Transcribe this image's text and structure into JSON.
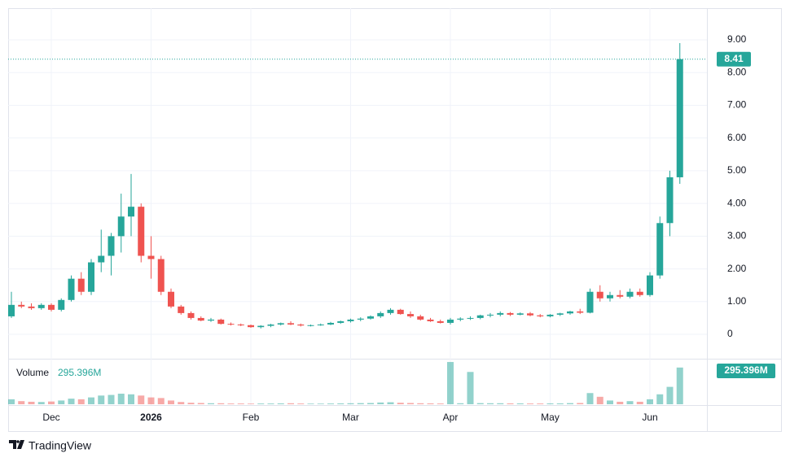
{
  "chart_data": {
    "type": "candlestick",
    "categories": [
      null,
      null,
      null,
      null,
      "Dec",
      null,
      null,
      null,
      null,
      null,
      null,
      null,
      null,
      null,
      "2026",
      null,
      null,
      null,
      null,
      null,
      null,
      null,
      null,
      null,
      "Feb",
      null,
      null,
      null,
      null,
      null,
      null,
      null,
      null,
      null,
      "Mar",
      null,
      null,
      null,
      null,
      null,
      null,
      null,
      null,
      null,
      "Apr",
      null,
      null,
      null,
      null,
      null,
      null,
      null,
      null,
      null,
      "May",
      null,
      null,
      null,
      null,
      null,
      null,
      null,
      null,
      null,
      "Jun",
      null,
      null,
      null
    ],
    "open": [
      0.55,
      0.9,
      0.85,
      0.8,
      0.9,
      0.75,
      1.05,
      1.7,
      1.3,
      2.2,
      2.4,
      3.0,
      3.6,
      3.9,
      2.4,
      2.3,
      1.3,
      0.85,
      0.65,
      0.5,
      0.42,
      0.45,
      0.32,
      0.3,
      0.28,
      0.22,
      0.26,
      0.3,
      0.34,
      0.3,
      0.27,
      0.28,
      0.3,
      0.35,
      0.4,
      0.45,
      0.48,
      0.55,
      0.65,
      0.75,
      0.62,
      0.55,
      0.45,
      0.4,
      0.35,
      0.45,
      0.48,
      0.5,
      0.58,
      0.6,
      0.65,
      0.6,
      0.64,
      0.58,
      0.55,
      0.6,
      0.64,
      0.7,
      0.66,
      1.3,
      1.1,
      1.2,
      1.15,
      1.3,
      1.2,
      1.8,
      3.4,
      4.8
    ],
    "high": [
      1.3,
      1.0,
      0.95,
      0.95,
      0.95,
      1.1,
      1.8,
      1.9,
      2.3,
      3.2,
      3.1,
      4.3,
      4.9,
      4.0,
      3.0,
      2.4,
      1.4,
      0.9,
      0.7,
      0.55,
      0.5,
      0.48,
      0.36,
      0.33,
      0.3,
      0.28,
      0.32,
      0.36,
      0.4,
      0.33,
      0.3,
      0.33,
      0.38,
      0.42,
      0.48,
      0.52,
      0.58,
      0.7,
      0.8,
      0.78,
      0.7,
      0.6,
      0.5,
      0.45,
      0.5,
      0.52,
      0.55,
      0.6,
      0.65,
      0.7,
      0.68,
      0.67,
      0.68,
      0.62,
      0.62,
      0.66,
      0.72,
      0.78,
      1.4,
      1.5,
      1.3,
      1.35,
      1.4,
      1.4,
      1.9,
      3.6,
      5.0,
      8.9
    ],
    "low": [
      0.5,
      0.8,
      0.75,
      0.75,
      0.7,
      0.7,
      1.0,
      1.2,
      1.2,
      1.9,
      1.8,
      2.5,
      3.0,
      2.2,
      1.7,
      1.2,
      0.8,
      0.6,
      0.45,
      0.4,
      0.38,
      0.3,
      0.27,
      0.25,
      0.2,
      0.18,
      0.22,
      0.27,
      0.28,
      0.24,
      0.24,
      0.26,
      0.28,
      0.32,
      0.36,
      0.4,
      0.45,
      0.5,
      0.6,
      0.6,
      0.5,
      0.42,
      0.38,
      0.33,
      0.3,
      0.4,
      0.44,
      0.46,
      0.52,
      0.55,
      0.56,
      0.58,
      0.55,
      0.52,
      0.52,
      0.56,
      0.6,
      0.62,
      0.64,
      1.0,
      1.0,
      1.1,
      1.1,
      1.15,
      1.15,
      1.7,
      3.0,
      4.6
    ],
    "close": [
      0.9,
      0.85,
      0.8,
      0.9,
      0.75,
      1.05,
      1.7,
      1.3,
      2.2,
      2.4,
      3.0,
      3.6,
      3.9,
      2.4,
      2.3,
      1.3,
      0.85,
      0.65,
      0.5,
      0.42,
      0.45,
      0.32,
      0.3,
      0.28,
      0.22,
      0.26,
      0.3,
      0.34,
      0.3,
      0.27,
      0.28,
      0.3,
      0.35,
      0.4,
      0.45,
      0.48,
      0.55,
      0.65,
      0.75,
      0.62,
      0.55,
      0.45,
      0.4,
      0.35,
      0.45,
      0.48,
      0.5,
      0.58,
      0.6,
      0.65,
      0.6,
      0.64,
      0.58,
      0.55,
      0.6,
      0.64,
      0.7,
      0.66,
      1.3,
      1.1,
      1.2,
      1.15,
      1.3,
      1.2,
      1.8,
      3.4,
      4.8,
      8.41
    ],
    "up_color": "#26a69a",
    "down_color": "#ef5350",
    "ylim": [
      -0.72,
      9.92
    ],
    "yticks": [
      0,
      {
        "value": 1,
        "label": "1.00"
      },
      {
        "value": 2,
        "label": "2.00"
      },
      {
        "value": 3,
        "label": "3.00"
      },
      {
        "value": 4,
        "label": "4.00"
      },
      {
        "value": 5,
        "label": "5.00"
      },
      {
        "value": 6,
        "label": "6.00"
      },
      {
        "value": 7,
        "label": "7.00"
      },
      {
        "value": 8,
        "label": "8.00"
      },
      {
        "value": 9,
        "label": "9.00"
      }
    ],
    "grid": true,
    "volume": {
      "name": "Volume",
      "ylim": [
        0,
        360
      ],
      "values": [
        40,
        25,
        20,
        18,
        22,
        30,
        45,
        40,
        55,
        70,
        75,
        85,
        80,
        70,
        55,
        50,
        30,
        18,
        12,
        10,
        8,
        8,
        6,
        6,
        5,
        6,
        6,
        7,
        8,
        6,
        5,
        5,
        6,
        7,
        8,
        9,
        10,
        14,
        16,
        12,
        10,
        8,
        7,
        6,
        340,
        8,
        260,
        9,
        8,
        8,
        7,
        7,
        6,
        6,
        7,
        7,
        9,
        10,
        90,
        60,
        30,
        20,
        25,
        20,
        40,
        80,
        140,
        295.396
      ],
      "value_labels": [
        null,
        null,
        null,
        null,
        null,
        null,
        null,
        null,
        null,
        null,
        null,
        null,
        null,
        null,
        null,
        null,
        null,
        null,
        null,
        null,
        null,
        null,
        null,
        null,
        null,
        null,
        null,
        null,
        null,
        null,
        null,
        null,
        null,
        null,
        null,
        null,
        null,
        null,
        null,
        null,
        null,
        null,
        null,
        null,
        null,
        null,
        null,
        null,
        null,
        null,
        null,
        null,
        null,
        null,
        null,
        null,
        null,
        null,
        null,
        null,
        null,
        null,
        null,
        null,
        null,
        null,
        null,
        "295.396M"
      ]
    }
  },
  "brand": "TradingView"
}
